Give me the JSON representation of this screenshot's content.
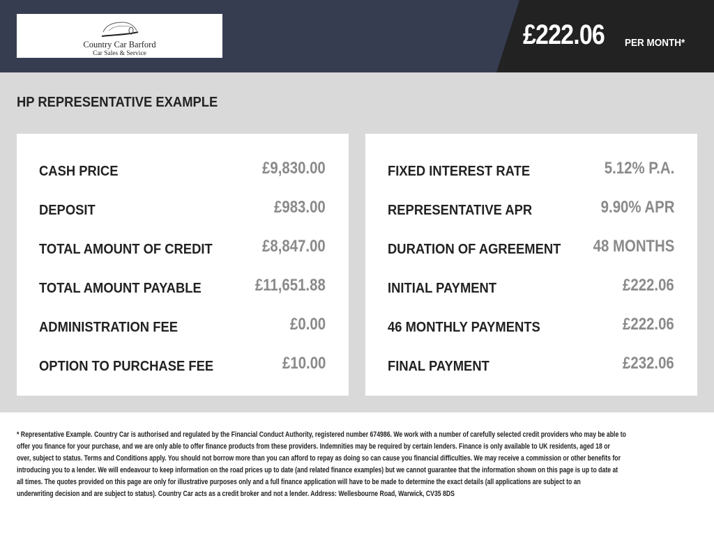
{
  "header": {
    "logo": {
      "name": "Country Car Barford",
      "tagline": "Car Sales & Service"
    },
    "monthly_price": "£222.06",
    "per_month_label": "PER MONTH*"
  },
  "section_title": "HP REPRESENTATIVE EXAMPLE",
  "left_items": [
    {
      "label": "CASH PRICE",
      "value": "£9,830.00"
    },
    {
      "label": "DEPOSIT",
      "value": "£983.00"
    },
    {
      "label": "TOTAL AMOUNT OF CREDIT",
      "value": "£8,847.00"
    },
    {
      "label": "TOTAL AMOUNT PAYABLE",
      "value": "£11,651.88"
    },
    {
      "label": "ADMINISTRATION FEE",
      "value": "£0.00"
    },
    {
      "label": "OPTION TO PURCHASE FEE",
      "value": "£10.00"
    }
  ],
  "right_items": [
    {
      "label": "FIXED INTEREST RATE",
      "value": "5.12% P.A."
    },
    {
      "label": "REPRESENTATIVE APR",
      "value": "9.90% APR"
    },
    {
      "label": "DURATION OF AGREEMENT",
      "value": "48 MONTHS"
    },
    {
      "label": "INITIAL PAYMENT",
      "value": "£222.06"
    },
    {
      "label": "46 MONTHLY PAYMENTS",
      "value": "£222.06"
    },
    {
      "label": "FINAL PAYMENT",
      "value": "£232.06"
    }
  ],
  "disclaimer_lines": [
    "* Representative Example. Country Car is authorised and regulated by the Financial Conduct Authority, registered number 674986. We work with a number of carefully selected credit providers who may be able to",
    "offer you finance for your purchase, and we are only able to offer finance products from these providers. Indemnities may be required by certain lenders. Finance is only available to UK residents, aged 18 or",
    "over, subject to status. Terms and Conditions apply. You should not borrow more than you can afford to repay as doing so can cause you financial difficulties. We may receive a commission or other benefits for",
    "introducing you to a lender. We will endeavour to keep information on the road prices up to date (and related finance examples) but we cannot guarantee that the information shown on this page is up to date at",
    "all times. The quotes provided on this page are only for illustrative purposes only and a full finance application will have to be made to determine the exact details (all applications are subject to an",
    "underwriting decision and are subject to status). Country Car acts as a credit broker and not a lender. Address: Wellesbourne Road, Warwick, CV35 8DS"
  ],
  "colors": {
    "header_bg": "#373d51",
    "price_panel_bg": "#222222",
    "section_bg": "#d9d9d9",
    "value_text": "#8a8a8a"
  }
}
